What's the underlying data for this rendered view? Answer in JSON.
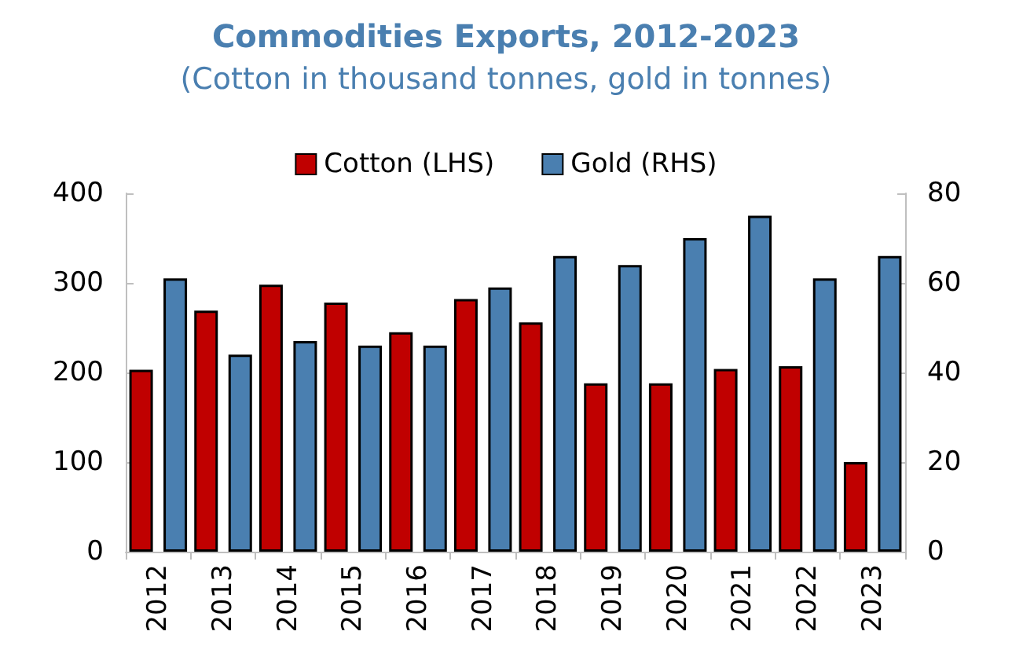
{
  "chart_data": {
    "type": "bar",
    "title": "Commodities Exports, 2012-2023",
    "subtitle": "(Cotton in thousand tonnes, gold in tonnes)",
    "categories": [
      "2012",
      "2013",
      "2014",
      "2015",
      "2016",
      "2017",
      "2018",
      "2019",
      "2020",
      "2021",
      "2022",
      "2023"
    ],
    "series": [
      {
        "name": "Cotton (LHS)",
        "color": "#c00000",
        "values": [
          203,
          269,
          298,
          278,
          245,
          282,
          256,
          188,
          188,
          204,
          207,
          100
        ]
      },
      {
        "name": "Gold (RHS)",
        "color": "#4a7fb0",
        "axis": "y2",
        "values": [
          61,
          44,
          47,
          46,
          46,
          59,
          66,
          64,
          70,
          75,
          61,
          66
        ]
      }
    ],
    "ylim": [
      0,
      400
    ],
    "yticks": [
      0,
      100,
      200,
      300,
      400
    ],
    "y2lim": [
      0,
      80
    ],
    "y2ticks": [
      0,
      20,
      40,
      60,
      80
    ],
    "grid": false,
    "legend": "top"
  }
}
